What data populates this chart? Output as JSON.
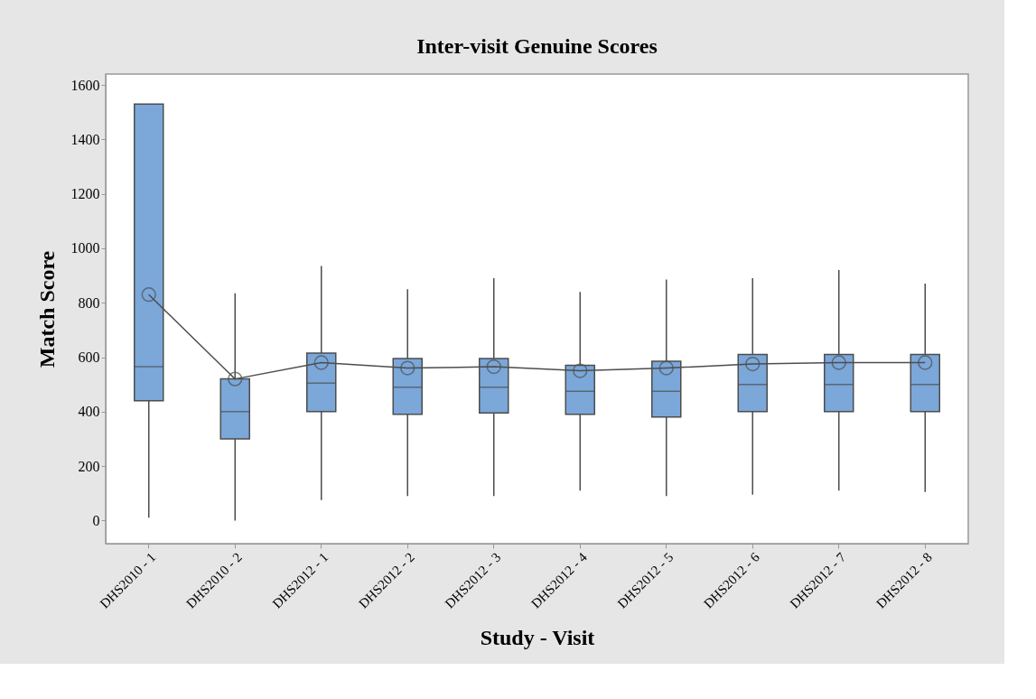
{
  "chart_data": {
    "type": "box",
    "title": "Inter-visit Genuine Scores",
    "xlabel": "Study - Visit",
    "ylabel": "Match Score",
    "categories": [
      "DHS2010 - 1",
      "DHS2010 - 2",
      "DHS2012 - 1",
      "DHS2012 - 2",
      "DHS2012 - 3",
      "DHS2012 - 4",
      "DHS2012 - 5",
      "DHS2012 - 6",
      "DHS2012 - 7",
      "DHS2012 - 8"
    ],
    "color": "#7ba7d9",
    "boxes": [
      {
        "low": 10,
        "q1": 440,
        "median": 565,
        "q3": 1530,
        "high": 1530
      },
      {
        "low": 0,
        "q1": 300,
        "median": 400,
        "q3": 520,
        "high": 835
      },
      {
        "low": 75,
        "q1": 400,
        "median": 505,
        "q3": 615,
        "high": 935
      },
      {
        "low": 90,
        "q1": 390,
        "median": 490,
        "q3": 595,
        "high": 850
      },
      {
        "low": 90,
        "q1": 395,
        "median": 490,
        "q3": 595,
        "high": 890
      },
      {
        "low": 110,
        "q1": 390,
        "median": 475,
        "q3": 570,
        "high": 840
      },
      {
        "low": 90,
        "q1": 380,
        "median": 475,
        "q3": 585,
        "high": 885
      },
      {
        "low": 95,
        "q1": 400,
        "median": 500,
        "q3": 610,
        "high": 890
      },
      {
        "low": 110,
        "q1": 400,
        "median": 500,
        "q3": 610,
        "high": 920
      },
      {
        "low": 105,
        "q1": 400,
        "median": 500,
        "q3": 610,
        "high": 870
      }
    ],
    "series": [
      {
        "type": "line",
        "color": "#4d4d4d",
        "marker": "circle",
        "values": [
          830,
          520,
          580,
          560,
          565,
          550,
          560,
          575,
          580,
          580
        ]
      }
    ],
    "ylim": [
      -85,
      1640
    ],
    "yticks": [
      0,
      200,
      400,
      600,
      800,
      1000,
      1200,
      1400,
      1600
    ],
    "grid": false
  }
}
